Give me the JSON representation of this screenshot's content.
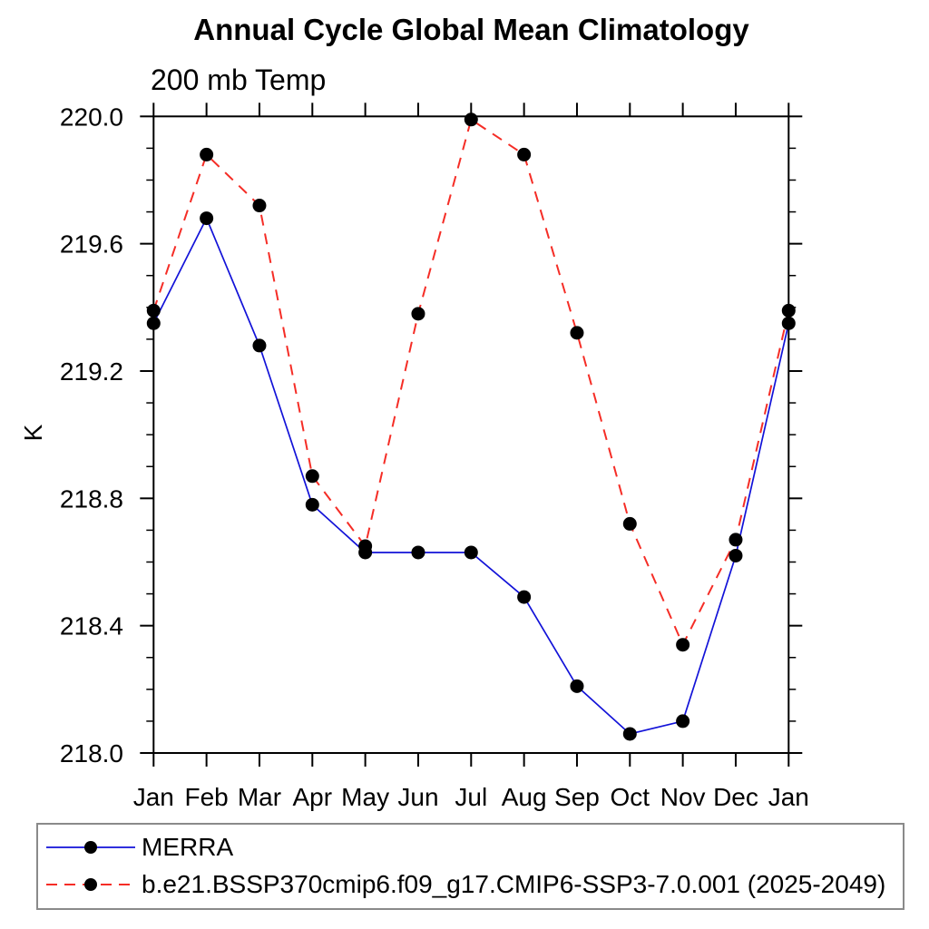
{
  "title": "Annual Cycle Global Mean Climatology",
  "subtitle": "200 mb Temp",
  "ylabel": "K",
  "chart_data": {
    "type": "line",
    "categories": [
      "Jan",
      "Feb",
      "Mar",
      "Apr",
      "May",
      "Jun",
      "Jul",
      "Aug",
      "Sep",
      "Oct",
      "Nov",
      "Dec",
      "Jan"
    ],
    "xlabel": "",
    "ylabel_units": "K",
    "ylim": [
      218.0,
      220.0
    ],
    "ytick_labels": [
      "218.0",
      "218.4",
      "218.8",
      "219.2",
      "219.6",
      "220.0"
    ],
    "ytick_minor_step": 0.1,
    "grid": false,
    "legend_position": "bottom-left-box",
    "axis_color": "#000000",
    "marker_color": "#000000",
    "series": [
      {
        "name": "MERRA",
        "color": "#1212d8",
        "line_style": "solid",
        "values": [
          219.35,
          219.68,
          219.28,
          218.78,
          218.63,
          218.63,
          218.63,
          218.49,
          218.21,
          218.06,
          218.1,
          218.62,
          219.35
        ]
      },
      {
        "name": "b.e21.BSSP370cmip6.f09_g17.CMIP6-SSP3-7.0.001 (2025-2049)",
        "color": "#f52d26",
        "line_style": "dashed",
        "values": [
          219.39,
          219.88,
          219.72,
          218.87,
          218.65,
          219.38,
          219.99,
          219.88,
          219.32,
          218.72,
          218.34,
          218.67,
          219.39
        ]
      }
    ]
  }
}
